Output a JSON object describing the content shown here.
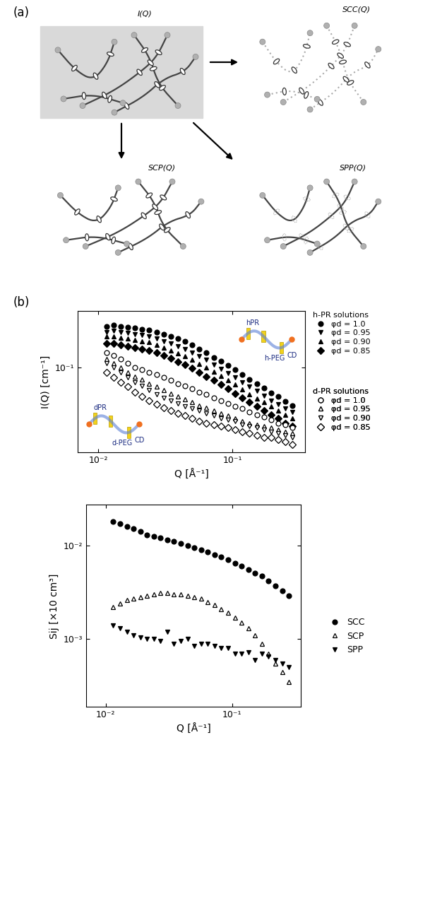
{
  "panel_labels": [
    "(a)",
    "(b)"
  ],
  "diagram": {
    "labels": {
      "total": "I(Q)",
      "cc": "SCC(Q)",
      "cp": "SCP(Q)",
      "pp": "SPP(Q)"
    }
  },
  "chart_data": [
    {
      "type": "scatter",
      "log": true,
      "legend": "right",
      "x_label": "Q [Å⁻¹]",
      "y_label": "I(Q) [cm⁻¹]",
      "xlim": [
        0.007,
        0.35
      ],
      "ylim": [
        0.015,
        0.35
      ],
      "xticks": [
        {
          "value": 0.01,
          "label": "10⁻²"
        },
        {
          "value": 0.1,
          "label": "10⁻¹"
        }
      ],
      "yticks": [
        {
          "value": 0.1,
          "label": "10⁻¹"
        }
      ],
      "annotations": {
        "h_inset": [
          "hPR",
          "h-PEG",
          "CD"
        ],
        "d_inset": [
          "dPR",
          "d-PEG",
          "CD"
        ]
      },
      "x": [
        0.0115,
        0.013,
        0.0147,
        0.0166,
        0.0188,
        0.0212,
        0.024,
        0.0272,
        0.0307,
        0.0347,
        0.0393,
        0.0444,
        0.0502,
        0.0568,
        0.0642,
        0.0726,
        0.0821,
        0.0929,
        0.105,
        0.1188,
        0.1343,
        0.1519,
        0.1718,
        0.1943,
        0.2197,
        0.2484,
        0.281
      ],
      "series_groups": [
        {
          "title": "h-PR solutions",
          "series": [
            {
              "name": "φd = 1.0",
              "color": "#000000",
              "marker": "circle",
              "values": [
                0.25,
                0.255,
                0.25,
                0.245,
                0.24,
                0.235,
                0.23,
                0.22,
                0.21,
                0.2,
                0.19,
                0.18,
                0.165,
                0.15,
                0.14,
                0.125,
                0.115,
                0.105,
                0.095,
                0.085,
                0.077,
                0.07,
                0.063,
                0.057,
                0.052,
                0.047,
                0.043
              ]
            },
            {
              "name": "φd = 0.95",
              "color": "#000000",
              "marker": "triangle_down",
              "values": [
                0.22,
                0.225,
                0.22,
                0.215,
                0.21,
                0.205,
                0.2,
                0.19,
                0.18,
                0.17,
                0.16,
                0.15,
                0.14,
                0.128,
                0.118,
                0.107,
                0.097,
                0.088,
                0.08,
                0.072,
                0.065,
                0.059,
                0.053,
                0.048,
                0.044,
                0.04,
                0.037
              ]
            },
            {
              "name": "φd = 0.90",
              "color": "#000000",
              "marker": "triangle_up",
              "values": [
                0.2,
                0.2,
                0.195,
                0.19,
                0.185,
                0.18,
                0.175,
                0.165,
                0.155,
                0.145,
                0.137,
                0.128,
                0.118,
                0.108,
                0.1,
                0.091,
                0.083,
                0.075,
                0.068,
                0.061,
                0.055,
                0.05,
                0.046,
                0.042,
                0.038,
                0.035,
                0.032
              ]
            },
            {
              "name": "φd = 0.85",
              "color": "#000000",
              "marker": "diamond",
              "values": [
                0.17,
                0.17,
                0.165,
                0.16,
                0.155,
                0.15,
                0.145,
                0.138,
                0.13,
                0.122,
                0.114,
                0.106,
                0.098,
                0.09,
                0.082,
                0.075,
                0.068,
                0.062,
                0.056,
                0.051,
                0.046,
                0.042,
                0.038,
                0.035,
                0.032,
                0.029,
                0.027
              ]
            }
          ]
        },
        {
          "title": "d-PR solutions",
          "series": [
            {
              "name": "φd = 1.0",
              "color": "#000000",
              "marker": "open_circle",
              "values": [
                0.14,
                0.13,
                0.12,
                0.11,
                0.1,
                0.095,
                0.09,
                0.085,
                0.08,
                0.075,
                0.07,
                0.066,
                0.062,
                0.058,
                0.055,
                0.051,
                0.048,
                0.045,
                0.042,
                0.04,
                0.037,
                0.035,
                0.033,
                0.031,
                0.029,
                0.028,
                0.026
              ]
            },
            {
              "name": "φd = 0.95",
              "color": "#000000",
              "marker": "open_triangle_up",
              "values": [
                0.12,
                0.11,
                0.1,
                0.09,
                0.082,
                0.076,
                0.07,
                0.065,
                0.06,
                0.056,
                0.052,
                0.049,
                0.046,
                0.043,
                0.041,
                0.038,
                0.036,
                0.034,
                0.032,
                0.03,
                0.029,
                0.028,
                0.027,
                0.026,
                0.025,
                0.024,
                0.023
              ]
            },
            {
              "name": "φd = 0.90",
              "color": "#000000",
              "marker": "open_triangle_down",
              "values": [
                0.11,
                0.1,
                0.09,
                0.08,
                0.072,
                0.066,
                0.06,
                0.055,
                0.051,
                0.048,
                0.045,
                0.042,
                0.04,
                0.038,
                0.036,
                0.034,
                0.032,
                0.031,
                0.03,
                0.028,
                0.027,
                0.026,
                0.025,
                0.024,
                0.023,
                0.022,
                0.021
              ]
            },
            {
              "name": "φd = 0.85",
              "color": "#000000",
              "marker": "open_diamond",
              "values": [
                0.09,
                0.08,
                0.072,
                0.065,
                0.058,
                0.052,
                0.048,
                0.044,
                0.041,
                0.038,
                0.036,
                0.034,
                0.032,
                0.03,
                0.029,
                0.028,
                0.027,
                0.026,
                0.025,
                0.024,
                0.023,
                0.022,
                0.021,
                0.021,
                0.02,
                0.019,
                0.018
              ]
            }
          ]
        }
      ]
    },
    {
      "type": "scatter",
      "log": true,
      "legend": "right",
      "x_label": "Q [Å⁻¹]",
      "y_label": "Sij [×10 cm³]",
      "xlim": [
        0.007,
        0.35
      ],
      "ylim": [
        0.00019,
        0.027
      ],
      "xticks": [
        {
          "value": 0.01,
          "label": "10⁻²"
        },
        {
          "value": 0.1,
          "label": "10⁻¹"
        }
      ],
      "yticks": [
        {
          "value": 0.001,
          "label": "10⁻³"
        },
        {
          "value": 0.01,
          "label": "10⁻²"
        }
      ],
      "x": [
        0.0115,
        0.013,
        0.0147,
        0.0166,
        0.0188,
        0.0212,
        0.024,
        0.0272,
        0.0307,
        0.0347,
        0.0393,
        0.0444,
        0.0502,
        0.0568,
        0.0642,
        0.0726,
        0.0821,
        0.0929,
        0.105,
        0.1188,
        0.1343,
        0.1519,
        0.1718,
        0.1943,
        0.2197,
        0.2484,
        0.281
      ],
      "series": [
        {
          "name": "SCC",
          "color": "#000000",
          "marker": "circle",
          "values": [
            0.018,
            0.017,
            0.016,
            0.015,
            0.014,
            0.013,
            0.0125,
            0.012,
            0.0115,
            0.011,
            0.0105,
            0.01,
            0.0095,
            0.009,
            0.0085,
            0.008,
            0.0075,
            0.007,
            0.0065,
            0.006,
            0.0055,
            0.0051,
            0.0047,
            0.0042,
            0.0037,
            0.0033,
            0.0029
          ]
        },
        {
          "name": "SCP",
          "color": "#000000",
          "marker": "open_triangle_up",
          "values": [
            0.0022,
            0.0024,
            0.0026,
            0.0027,
            0.0028,
            0.0029,
            0.003,
            0.0031,
            0.0031,
            0.003,
            0.003,
            0.0029,
            0.0028,
            0.0027,
            0.0025,
            0.0023,
            0.0021,
            0.0019,
            0.0017,
            0.0015,
            0.0013,
            0.0011,
            0.0009,
            0.0007,
            0.00055,
            0.00045,
            0.00035
          ]
        },
        {
          "name": "SPP",
          "color": "#000000",
          "marker": "triangle_down",
          "values": [
            0.0014,
            0.0013,
            0.0012,
            0.0011,
            0.00105,
            0.001,
            0.001,
            0.00095,
            0.0012,
            0.0009,
            0.00095,
            0.001,
            0.00085,
            0.0009,
            0.0009,
            0.00085,
            0.0008,
            0.0008,
            0.0007,
            0.0007,
            0.00072,
            0.0006,
            0.0007,
            0.00065,
            0.0006,
            0.00055,
            0.0005
          ]
        }
      ]
    }
  ]
}
